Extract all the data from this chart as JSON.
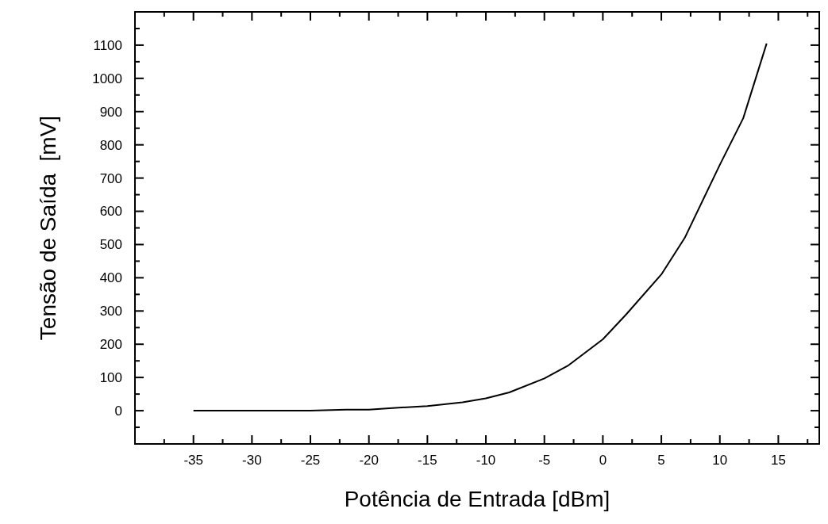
{
  "chart_data": {
    "type": "line",
    "xlabel": "Potência de Entrada [dBm]",
    "ylabel": "Tensão de Saída  [mV]",
    "xlim": [
      -40,
      18.5
    ],
    "ylim": [
      -100,
      1200
    ],
    "xticks": [
      {
        "value": -37.5,
        "label": null
      },
      -35,
      {
        "value": -32.5,
        "label": null
      },
      -30,
      {
        "value": -27.5,
        "label": null
      },
      -25,
      {
        "value": -22.5,
        "label": null
      },
      -20,
      {
        "value": -17.5,
        "label": null
      },
      -15,
      {
        "value": -12.5,
        "label": null
      },
      -10,
      {
        "value": -7.5,
        "label": null
      },
      -5,
      {
        "value": -2.5,
        "label": null
      },
      0,
      {
        "value": 2.5,
        "label": null
      },
      5,
      {
        "value": 7.5,
        "label": null
      },
      10,
      {
        "value": 12.5,
        "label": null
      },
      15,
      {
        "value": 17.5,
        "label": null
      }
    ],
    "yticks": [
      {
        "value": -50,
        "label": null
      },
      0,
      {
        "value": 50,
        "label": null
      },
      100,
      {
        "value": 150,
        "label": null
      },
      200,
      {
        "value": 250,
        "label": null
      },
      300,
      {
        "value": 350,
        "label": null
      },
      400,
      {
        "value": 450,
        "label": null
      },
      500,
      {
        "value": 550,
        "label": null
      },
      600,
      {
        "value": 650,
        "label": null
      },
      700,
      {
        "value": 750,
        "label": null
      },
      800,
      {
        "value": 850,
        "label": null
      },
      900,
      {
        "value": 950,
        "label": null
      },
      1000,
      {
        "value": 1050,
        "label": null
      },
      1100,
      {
        "value": 1150,
        "label": null
      }
    ],
    "grid": false,
    "marker": "none",
    "line_style": "solid",
    "series": [
      {
        "color": "#000000",
        "x": [
          -35,
          -30,
          -25,
          -22,
          -20,
          -18,
          -15,
          -12,
          -10,
          -8,
          -5,
          -3,
          0,
          2,
          5,
          7,
          10,
          12,
          14
        ],
        "values": [
          0,
          0,
          0,
          3,
          3,
          8,
          14,
          25,
          37,
          55,
          97,
          135,
          215,
          290,
          410,
          520,
          740,
          880,
          1105
        ]
      }
    ]
  }
}
